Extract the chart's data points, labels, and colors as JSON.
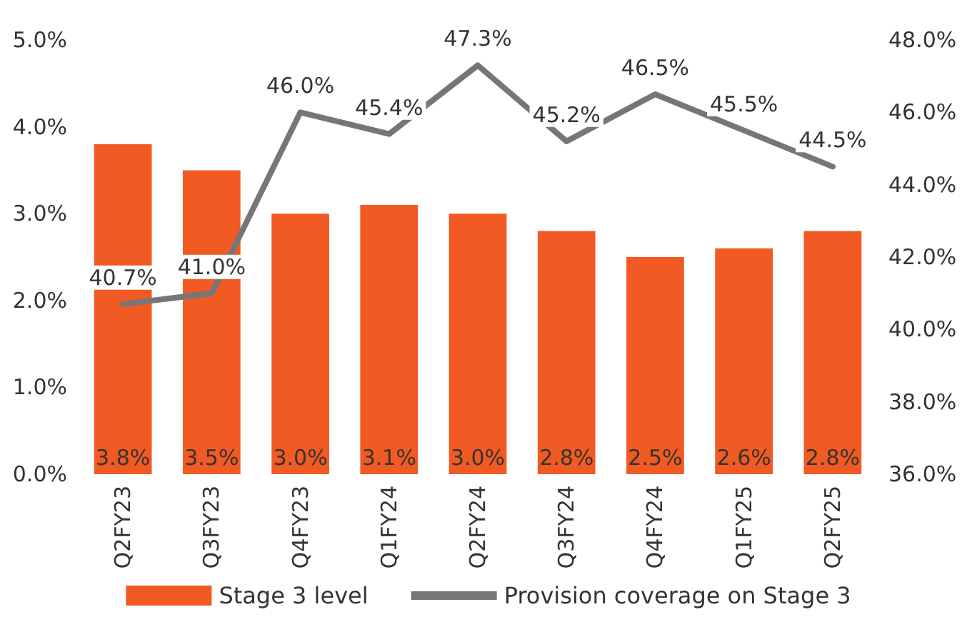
{
  "chart_data": {
    "type": "bar",
    "categories": [
      "Q2FY23",
      "Q3FY23",
      "Q4FY23",
      "Q1FY24",
      "Q2FY24",
      "Q3FY24",
      "Q4FY24",
      "Q1FY25",
      "Q2FY25"
    ],
    "series": [
      {
        "name": "Stage 3 level",
        "color": "#f15a22",
        "values": [
          3.8,
          3.5,
          3.0,
          3.1,
          3.0,
          2.8,
          2.5,
          2.6,
          2.8
        ],
        "value_labels": [
          "3.8%",
          "3.5%",
          "3.0%",
          "3.1%",
          "3.0%",
          "2.8%",
          "2.5%",
          "2.6%",
          "2.8%"
        ]
      },
      {
        "name": "Provision coverage on Stage 3",
        "type": "line",
        "axis": "y2",
        "color": "#767676",
        "values": [
          40.7,
          41.0,
          46.0,
          45.4,
          47.3,
          45.2,
          46.5,
          45.5,
          44.5
        ],
        "value_labels": [
          "40.7%",
          "41.0%",
          "46.0%",
          "45.4%",
          "47.3%",
          "45.2%",
          "46.5%",
          "45.5%",
          "44.5%"
        ]
      }
    ],
    "ylim": [
      0,
      5
    ],
    "yticks": [
      {
        "value": 0,
        "label": "0.0%"
      },
      {
        "value": 1,
        "label": "1.0%"
      },
      {
        "value": 2,
        "label": "2.0%"
      },
      {
        "value": 3,
        "label": "3.0%"
      },
      {
        "value": 4,
        "label": "4.0%"
      },
      {
        "value": 5,
        "label": "5.0%"
      }
    ],
    "y2lim": [
      36,
      48
    ],
    "y2ticks": [
      {
        "value": 36,
        "label": "36.0%"
      },
      {
        "value": 38,
        "label": "38.0%"
      },
      {
        "value": 40,
        "label": "40.0%"
      },
      {
        "value": 42,
        "label": "42.0%"
      },
      {
        "value": 44,
        "label": "44.0%"
      },
      {
        "value": 46,
        "label": "46.0%"
      },
      {
        "value": 48,
        "label": "48.0%"
      }
    ],
    "grid": false,
    "legend": "bottom",
    "marker": "none",
    "line_style": "solid"
  }
}
